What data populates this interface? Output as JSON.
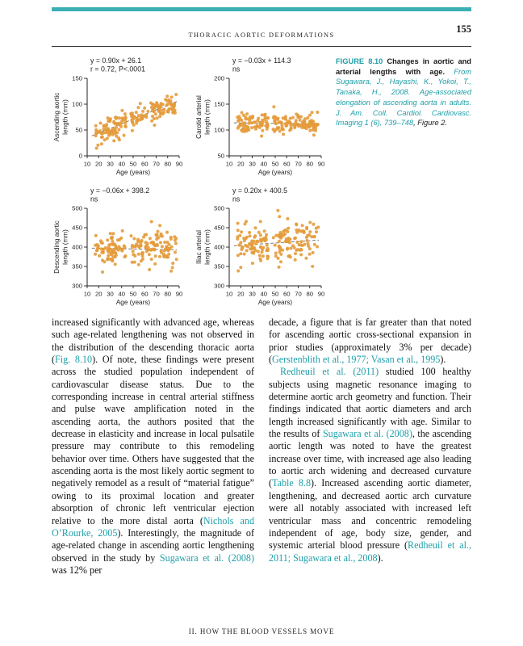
{
  "page": {
    "running_head": "THORACIC AORTIC DEFORMATIONS",
    "page_number": "155",
    "footer": "II. HOW THE BLOOD VESSELS MOVE"
  },
  "colors": {
    "teal_accent": "#1e9fa8",
    "top_bar": "#3bafb3",
    "dot": "#e49b3b",
    "axis": "#222222"
  },
  "figure_caption": {
    "label": "FIGURE 8.10",
    "title": " Changes in aortic and arterial lengths with age.",
    "source": " From Sugawara, J., Hayashi, K., Yokoi, T., Tanaka, H., 2008. Age-associated elongation of ascending aorta in adults. J. Am. Coll. Cardiol. Cardiovasc. Imaging 1 (6), 739–748",
    "tail": ", Figure 2."
  },
  "chart_data": [
    {
      "type": "scatter",
      "ylabel": "Ascending aortic length (mm)",
      "ylabel_lines": [
        "Ascending aortic",
        "length (mm)"
      ],
      "xlabel": "Age (years)",
      "equation": "y = 0.90x + 26.1",
      "stat": "r = 0.72, P<.0001",
      "xlim": [
        10,
        90
      ],
      "ylim": [
        0,
        150
      ],
      "xticks": [
        10,
        20,
        30,
        40,
        50,
        60,
        70,
        80,
        90
      ],
      "yticks": [
        0,
        50,
        100,
        150
      ],
      "trend": {
        "slope": 0.9,
        "intercept": 26.1
      },
      "points": {
        "n": 185,
        "sd": 12,
        "seed": 101
      }
    },
    {
      "type": "scatter",
      "ylabel": "Carotid arterial length (mm)",
      "ylabel_lines": [
        "Carotid arterial",
        "length (mm)"
      ],
      "xlabel": "Age (years)",
      "equation": "y = −0.03x + 114.3",
      "stat": "ns",
      "xlim": [
        10,
        90
      ],
      "ylim": [
        50,
        200
      ],
      "xticks": [
        10,
        20,
        30,
        40,
        50,
        60,
        70,
        80,
        90
      ],
      "yticks": [
        50,
        100,
        150,
        200
      ],
      "trend": {
        "slope": -0.03,
        "intercept": 114.3
      },
      "points": {
        "n": 185,
        "sd": 9,
        "seed": 202
      }
    },
    {
      "type": "scatter",
      "ylabel": "Descending aortic length (mm)",
      "ylabel_lines": [
        "Descending aortic",
        "length (mm)"
      ],
      "xlabel": "Age (years)",
      "equation": "y = −0.06x + 398.2",
      "stat": "ns",
      "xlim": [
        10,
        90
      ],
      "ylim": [
        300,
        500
      ],
      "xticks": [
        10,
        20,
        30,
        40,
        50,
        60,
        70,
        80,
        90
      ],
      "yticks": [
        300,
        350,
        400,
        450,
        500
      ],
      "trend": {
        "slope": -0.06,
        "intercept": 398.2
      },
      "points": {
        "n": 185,
        "sd": 21,
        "seed": 303
      }
    },
    {
      "type": "scatter",
      "ylabel": "Iliac arterial length (mm)",
      "ylabel_lines": [
        "Iliac arterial",
        "length (mm)"
      ],
      "xlabel": "Age (years)",
      "equation": "y = 0.20x + 400.5",
      "stat": "ns",
      "xlim": [
        10,
        90
      ],
      "ylim": [
        300,
        500
      ],
      "xticks": [
        10,
        20,
        30,
        40,
        50,
        60,
        70,
        80,
        90
      ],
      "yticks": [
        300,
        350,
        400,
        450,
        500
      ],
      "trend": {
        "slope": 0.2,
        "intercept": 400.5
      },
      "points": {
        "n": 185,
        "sd": 24,
        "seed": 404
      }
    }
  ],
  "body": {
    "left_column": [
      {
        "indent": false,
        "segments": [
          {
            "t": "increased significantly with advanced age, whereas such age-related lengthening was not observed in the distribution of the descending thoracic aorta ("
          },
          {
            "t": "Fig. 8.10",
            "link": true
          },
          {
            "t": "). Of note, these findings were present across the studied population independent of cardiovascular disease status. Due to the corresponding increase in central arterial stiffness and pulse wave amplification noted in the ascending aorta, the authors posited that the decrease in elasticity and increase in local pulsatile pressure may contribute to this remodeling behavior over time. Others have suggested that the ascending aorta is the most likely aortic segment to negatively remodel as a result of “material fatigue” owing to its proximal location and greater absorption of chronic left ventricular ejection relative to the more distal aorta ("
          },
          {
            "t": "Nichols and O’Rourke, 2005",
            "link": true
          },
          {
            "t": "). Interestingly, the magnitude of age-related change in ascending aortic lengthening observed in the study by "
          },
          {
            "t": "Sugawara et al. (2008)",
            "link": true
          },
          {
            "t": " was 12% per"
          }
        ]
      }
    ],
    "right_column": [
      {
        "indent": false,
        "segments": [
          {
            "t": "decade, a figure that is far greater than that noted for ascending aortic cross-sectional expansion in prior studies (approximately 3% per decade) ("
          },
          {
            "t": "Gerstenblith et al., 1977; Vasan et al., 1995",
            "link": true
          },
          {
            "t": ")."
          }
        ]
      },
      {
        "indent": true,
        "segments": [
          {
            "t": "Redheuil et al. (2011)",
            "link": true
          },
          {
            "t": " studied 100 healthy subjects using magnetic resonance imaging to determine aortic arch geometry and function. Their findings indicated that aortic diameters and arch length increased significantly with age. Similar to the results of "
          },
          {
            "t": "Sugawara et al. (2008)",
            "link": true
          },
          {
            "t": ", the ascending aortic length was noted to have the greatest increase over time, with increased age also leading to aortic arch widening and decreased curvature ("
          },
          {
            "t": "Table 8.8",
            "link": true
          },
          {
            "t": "). Increased ascending aortic diameter, lengthening, and decreased aortic arch curvature were all notably associated with increased left ventricular mass and concentric remodeling independent of age, body size, gender, and systemic arterial blood pressure ("
          },
          {
            "t": "Redheuil et al., 2011; Sugawara et al., 2008",
            "link": true
          },
          {
            "t": ")."
          }
        ]
      }
    ]
  }
}
